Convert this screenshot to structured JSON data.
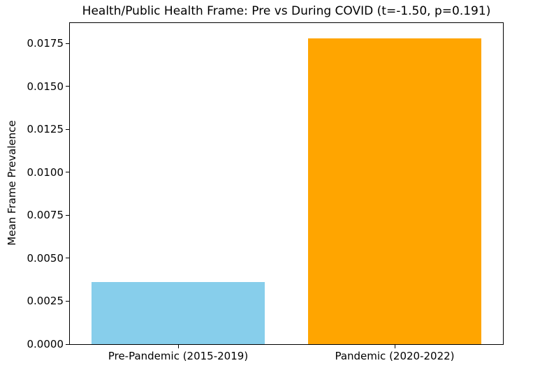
{
  "chart_data": {
    "type": "bar",
    "title": "Health/Public Health Frame: Pre vs During COVID (t=-1.50, p=0.191)",
    "ylabel": "Mean Frame Prevalence",
    "xlabel": "",
    "categories": [
      "Pre-Pandemic (2015-2019)",
      "Pandemic (2020-2022)"
    ],
    "values": [
      0.0036,
      0.0178
    ],
    "bar_colors": [
      "#87CEEB",
      "#FFA500"
    ],
    "ylim": [
      0,
      0.01869
    ],
    "yticks": [
      0,
      0.0025,
      0.005,
      0.0075,
      0.01,
      0.0125,
      0.015,
      0.0175
    ],
    "ytick_labels": [
      "0.0000",
      "0.0025",
      "0.0050",
      "0.0075",
      "0.0100",
      "0.0125",
      "0.0150",
      "0.0175"
    ],
    "grid": false,
    "legend": null,
    "spine_color": "#000000",
    "text_color": "#000000",
    "background_color": "#ffffff"
  }
}
